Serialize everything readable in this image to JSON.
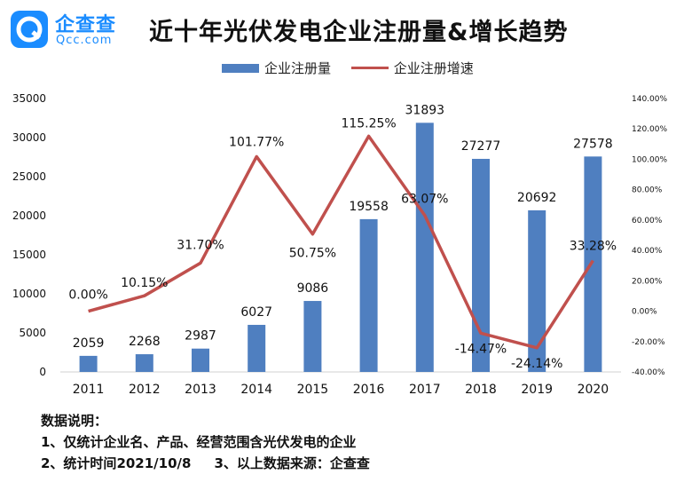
{
  "brand": {
    "name": "企查查",
    "domain": "Qcc.com",
    "logo_letter": "Q",
    "accent": "#1a8cff"
  },
  "title": "近十年光伏发电企业注册量&增长趋势",
  "legend": {
    "bar_label": "企业注册量",
    "line_label": "企业注册增速"
  },
  "notes": {
    "heading": "数据说明：",
    "line1": "1、仅统计企业名、产品、经营范围含光伏发电的企业",
    "line2a": "2、统计时间2021/10/8",
    "line2b": "3、以上数据来源：企查查"
  },
  "colors": {
    "bar": "#4f7fc0",
    "line": "#c0504d"
  },
  "chart_data": {
    "type": "bar",
    "categories": [
      "2011",
      "2012",
      "2013",
      "2014",
      "2015",
      "2016",
      "2017",
      "2018",
      "2019",
      "2020"
    ],
    "series": [
      {
        "name": "企业注册量",
        "type": "bar",
        "axis": "left",
        "values": [
          2059,
          2268,
          2987,
          6027,
          9086,
          19558,
          31893,
          27277,
          20692,
          27578
        ],
        "labels": [
          "2059",
          "2268",
          "2987",
          "6027",
          "9086",
          "19558",
          "31893",
          "27277",
          "20692",
          "27578"
        ]
      },
      {
        "name": "企业注册增速",
        "type": "line",
        "axis": "right",
        "values": [
          0.0,
          10.15,
          31.7,
          101.77,
          50.75,
          115.25,
          63.07,
          -14.47,
          -24.14,
          33.28
        ],
        "labels": [
          "0.00%",
          "10.15%",
          "31.70%",
          "101.77%",
          "50.75%",
          "115.25%",
          "63.07%",
          "-14.47%",
          "-24.14%",
          "33.28%"
        ]
      }
    ],
    "y_left": {
      "ylim": [
        0,
        35000
      ],
      "ticks": [
        "0",
        "5000",
        "10000",
        "15000",
        "20000",
        "25000",
        "30000",
        "35000"
      ]
    },
    "y_right": {
      "ylim": [
        -40,
        140
      ],
      "ticks": [
        "-40.00%",
        "-20.00%",
        "0.00%",
        "20.00%",
        "40.00%",
        "60.00%",
        "80.00%",
        "100.00%",
        "120.00%",
        "140.00%"
      ]
    },
    "grid": false,
    "legend_position": "top"
  }
}
